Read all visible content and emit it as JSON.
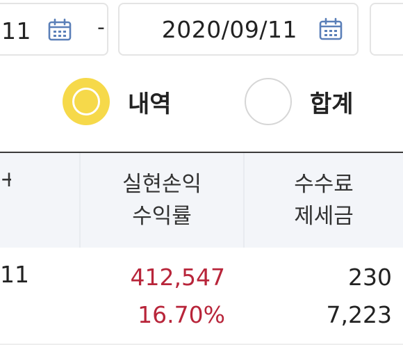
{
  "date_range": {
    "start_value": "11",
    "separator": "-",
    "end_value": "2020/09/11",
    "calendar_icon": "calendar-icon",
    "icon_color": "#5a7fb8"
  },
  "view_mode": {
    "options": [
      {
        "label": "내역",
        "selected": true
      },
      {
        "label": "합계",
        "selected": false
      }
    ],
    "selected_color": "#f6d94a"
  },
  "table": {
    "header_partial": "+",
    "columns": [
      {
        "line1": "실현손익",
        "line2": "수익률"
      },
      {
        "line1": "수수료",
        "line2": "제세금"
      }
    ],
    "rows": [
      {
        "date": "11",
        "realized_pl": "412,547",
        "return_rate": "16.70%",
        "fee": "230",
        "tax": "7,223"
      }
    ],
    "positive_color": "#b8253a",
    "header_bg": "#f3f5f9"
  }
}
